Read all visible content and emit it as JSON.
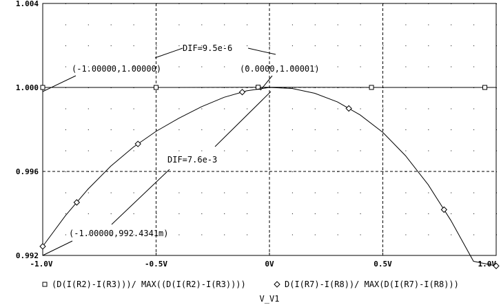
{
  "chart_data": {
    "type": "line",
    "xlabel": "V_V1",
    "ylabel": "",
    "xlim": [
      -1.0,
      1.0
    ],
    "ylim": [
      0.992,
      1.004
    ],
    "x_ticks": [
      -1.0,
      -0.5,
      0.0,
      0.5,
      1.0
    ],
    "x_tick_labels": [
      "-1.0V",
      "-0.5V",
      "0V",
      "0.5V",
      "1.0V"
    ],
    "y_ticks": [
      0.992,
      0.996,
      1.0,
      1.004
    ],
    "y_tick_labels": [
      "0.992",
      "0.996",
      "1.000",
      "1.004"
    ],
    "grid": true,
    "series": [
      {
        "name": "(D(I(R2)-I(R3)))/ MAX((D(I(R2)-I(R3))))",
        "marker": "square",
        "x": [
          -1.0,
          -0.5,
          0.0,
          0.5,
          1.0
        ],
        "y": [
          1.0,
          1.0,
          1.00001,
          1.0,
          1.0
        ],
        "marker_x": [
          -1.0,
          -0.5,
          -0.05,
          0.45,
          0.95
        ]
      },
      {
        "name": "D(I(R7)-I(R8))/ MAX(D(I(R7)-I(R8)))",
        "marker": "diamond",
        "x": [
          -1.0,
          -0.9,
          -0.8,
          -0.7,
          -0.6,
          -0.5,
          -0.4,
          -0.3,
          -0.2,
          -0.1,
          0.0,
          0.1,
          0.2,
          0.3,
          0.4,
          0.5,
          0.6,
          0.7,
          0.8,
          0.9,
          1.0
        ],
        "y": [
          0.99243,
          0.99389,
          0.99516,
          0.99625,
          0.99716,
          0.99791,
          0.99853,
          0.99908,
          0.99953,
          0.99984,
          1.0,
          0.99995,
          0.99972,
          0.99931,
          0.99869,
          0.99786,
          0.99675,
          0.99537,
          0.99367,
          0.99172,
          0.9915
        ],
        "marker_x": [
          -1.0,
          -0.85,
          -0.58,
          -0.12,
          0.35,
          0.77,
          1.0
        ]
      }
    ],
    "annotations": [
      {
        "text": "DIF=9.5e-6"
      },
      {
        "text": "(-1.00000,1.00000)"
      },
      {
        "text": "(0.0000,1.00001)"
      },
      {
        "text": "DIF=7.6e-3"
      },
      {
        "text": "(-1.00000,992.4341m)"
      }
    ]
  }
}
